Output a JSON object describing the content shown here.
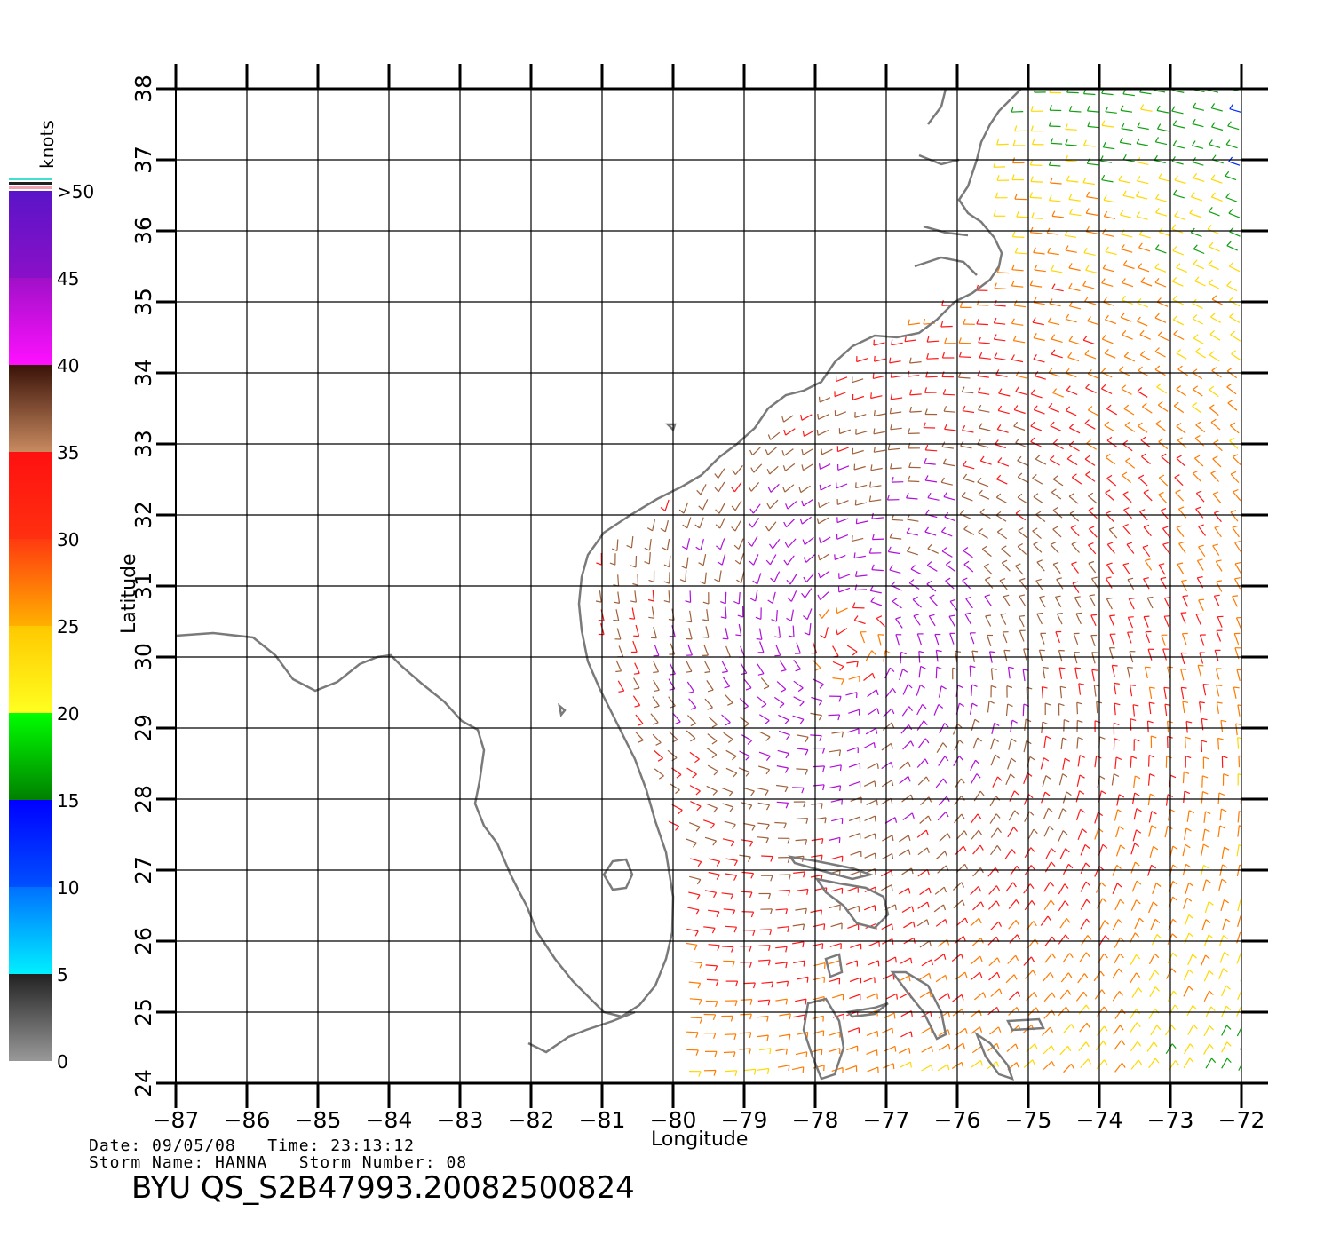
{
  "colorbar": {
    "unit_label": "knots",
    "labels": [
      ">50",
      "45",
      "40",
      "35",
      "30",
      "25",
      "20",
      "15",
      "10",
      "5",
      "0"
    ],
    "bands": [
      {
        "from": 45,
        "to": 50,
        "colors": [
          "#5a14c8",
          "#8a10c8"
        ]
      },
      {
        "from": 40,
        "to": 45,
        "colors": [
          "#a010c8",
          "#ff10ff"
        ]
      },
      {
        "from": 35,
        "to": 40,
        "colors": [
          "#3a1208",
          "#c88a60"
        ]
      },
      {
        "from": 30,
        "to": 35,
        "colors": [
          "#ff1010",
          "#ff3010"
        ]
      },
      {
        "from": 25,
        "to": 30,
        "colors": [
          "#ff3a10",
          "#ffb000"
        ]
      },
      {
        "from": 20,
        "to": 25,
        "colors": [
          "#ffc800",
          "#ffff20"
        ]
      },
      {
        "from": 15,
        "to": 20,
        "colors": [
          "#00ff00",
          "#008000"
        ]
      },
      {
        "from": 10,
        "to": 15,
        "colors": [
          "#0000ff",
          "#0050ff"
        ]
      },
      {
        "from": 5,
        "to": 10,
        "colors": [
          "#0070ff",
          "#00f0ff"
        ]
      },
      {
        "from": 0,
        "to": 5,
        "colors": [
          "#222222",
          "#999999"
        ]
      }
    ]
  },
  "map": {
    "lon_range": [
      -87,
      -72
    ],
    "lat_range": [
      24,
      38
    ],
    "lon_ticks": [
      "-87",
      "-86",
      "-85",
      "-84",
      "-83",
      "-82",
      "-81",
      "-80",
      "-79",
      "-78",
      "-77",
      "-76",
      "-75",
      "-74",
      "-73",
      "-72"
    ],
    "lat_ticks": [
      "24",
      "25",
      "26",
      "27",
      "28",
      "29",
      "30",
      "31",
      "32",
      "33",
      "34",
      "35",
      "36",
      "37",
      "38"
    ],
    "xlabel": "Longitude",
    "ylabel": "Latitude",
    "grid": true,
    "coastline_color": "#7a7a7a",
    "vector_field": {
      "type": "wind-barbs",
      "center": {
        "lon": -77.5,
        "lat": 30.2
      },
      "speed_units": "knots"
    }
  },
  "footer": {
    "line1": "Date: 09/05/08   Time: 23:13:12",
    "line2": "Storm Name: HANNA   Storm Number: 08",
    "title": "BYU  QS_S2B47993.20082500824"
  }
}
